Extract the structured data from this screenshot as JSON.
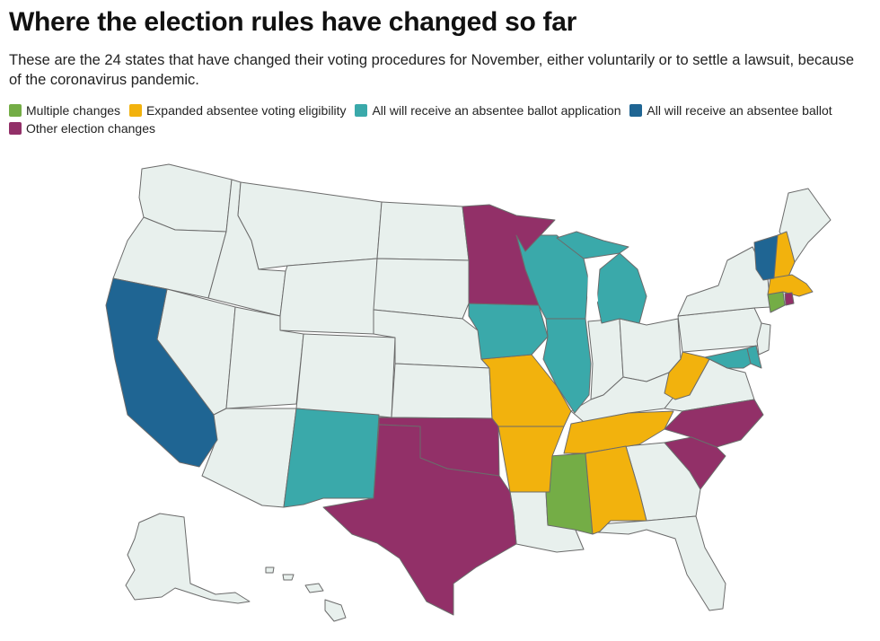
{
  "title": "Where the election rules have changed so far",
  "subtitle": "These are the 24 states that have changed their voting procedures for November, either voluntarily or to settle a lawsuit, because of the coronavirus pandemic.",
  "legend": [
    {
      "label": "Multiple changes",
      "color": "#74ad46"
    },
    {
      "label": "Expanded absentee voting eligibility",
      "color": "#f2b20d"
    },
    {
      "label": "All will receive an absentee ballot application",
      "color": "#3aa9aa"
    },
    {
      "label": "All will receive an absentee ballot",
      "color": "#1f6593"
    },
    {
      "label": "Other election changes",
      "color": "#923068"
    }
  ],
  "colors": {
    "unchanged": "#e8f0ed",
    "border": "#6b6b6b"
  },
  "states": {
    "multiple_changes": [
      "Connecticut",
      "Mississippi"
    ],
    "expanded_absentee_eligibility": [
      "Missouri",
      "Arkansas",
      "Tennessee",
      "Alabama",
      "West Virginia",
      "New Hampshire",
      "Massachusetts"
    ],
    "absentee_ballot_application": [
      "New Mexico",
      "Iowa",
      "Wisconsin",
      "Michigan",
      "Illinois",
      "Maryland",
      "Delaware"
    ],
    "absentee_ballot": [
      "California",
      "Vermont"
    ],
    "other_changes": [
      "Minnesota",
      "Texas",
      "Oklahoma",
      "North Carolina",
      "South Carolina",
      "Rhode Island"
    ]
  }
}
